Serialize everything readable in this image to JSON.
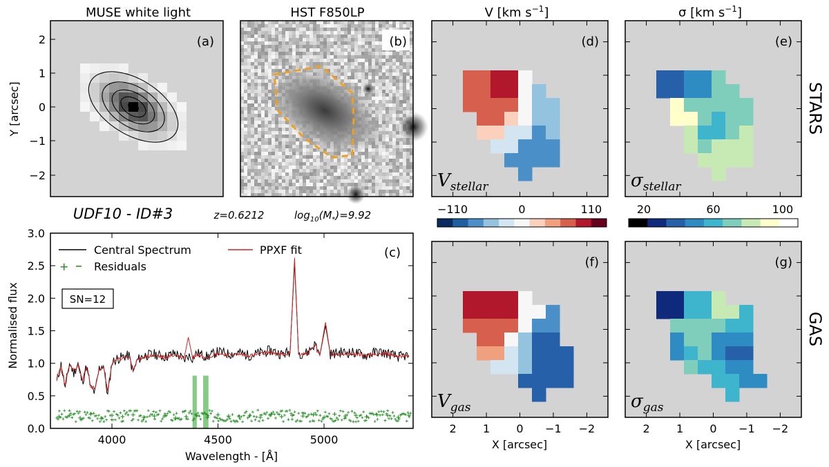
{
  "figure": {
    "panel_titles": {
      "a": "MUSE white light",
      "b": "HST F850LP",
      "d": "V [km s",
      "d_sup": "−1",
      "d_close": "]",
      "e": "σ [km s",
      "e_sup": "−1",
      "e_close": "]"
    },
    "panel_letters": {
      "a": "(a)",
      "b": "(b)",
      "c": "(c)",
      "d": "(d)",
      "e": "(e)",
      "f": "(f)",
      "g": "(g)"
    },
    "row_labels": {
      "stars": "STARS",
      "gas": "GAS"
    },
    "object": {
      "name": "UDF10 - ID#3",
      "redshift": "z=0.6212",
      "mass_prefix": "log",
      "mass_sub": "10",
      "mass_mid": "(M",
      "mass_sub2": "*",
      "mass_value": ")=9.92"
    },
    "map_labels": {
      "v_stellar": "V",
      "v_stellar_sub": "stellar",
      "s_stellar": "σ",
      "s_stellar_sub": "stellar",
      "v_gas": "V",
      "v_gas_sub": "gas",
      "s_gas": "σ",
      "s_gas_sub": "gas"
    },
    "axes": {
      "y_arcsec_label": "Y [arcsec]",
      "y_arcsec_ticks": [
        "2",
        "1",
        "0",
        "−1",
        "−2"
      ],
      "x_arcsec_label": "X [arcsec]",
      "x_arcsec_ticks": [
        "2",
        "1",
        "0",
        "−1",
        "−2"
      ]
    },
    "colorbars": {
      "velocity": {
        "ticks": [
          "−110",
          "0",
          "110"
        ],
        "colors": [
          "#0a2b60",
          "#1f5fa0",
          "#4a8fc8",
          "#93c3de",
          "#d4e5f2",
          "#f7f7f7",
          "#fbd0bc",
          "#f0a07f",
          "#d6604d",
          "#b2182b",
          "#67001f"
        ]
      },
      "dispersion": {
        "ticks": [
          "20",
          "60",
          "100"
        ],
        "colors": [
          "#000000",
          "#0f2a7a",
          "#2560a8",
          "#2e8cc2",
          "#3eb5cc",
          "#7fcdbb",
          "#c7e9b4",
          "#ffffcc",
          "#ffffff"
        ]
      }
    },
    "map_colors": {
      "background": "#d3d3d3",
      "v_stellar_cells": [
        {
          "c": "#d6604d"
        },
        {
          "c": "#b2182b"
        },
        {
          "c": "#f7f7f7"
        },
        {
          "c": "#93c3de"
        },
        {
          "c": "#4a8fc8"
        },
        {
          "c": "#fbd0bc"
        },
        {
          "c": "#d4e5f2"
        }
      ],
      "s_stellar_cells": [
        {
          "c": "#2560a8"
        },
        {
          "c": "#2e8cc2"
        },
        {
          "c": "#7fcdbb"
        },
        {
          "c": "#ffffcc"
        },
        {
          "c": "#c7e9b4"
        },
        {
          "c": "#3eb5cc"
        }
      ],
      "v_gas_cells": [
        {
          "c": "#b2182b"
        },
        {
          "c": "#d6604d"
        },
        {
          "c": "#f0a07f"
        },
        {
          "c": "#f7f7f7"
        },
        {
          "c": "#4a8fc8"
        },
        {
          "c": "#2560a8"
        },
        {
          "c": "#d4e5f2"
        },
        {
          "c": "#93c3de"
        }
      ],
      "s_gas_cells": [
        {
          "c": "#0f2a7a"
        },
        {
          "c": "#3eb5cc"
        },
        {
          "c": "#c7e9b4"
        },
        {
          "c": "#7fcdbb"
        },
        {
          "c": "#2e8cc2"
        },
        {
          "c": "#2560a8"
        }
      ]
    },
    "spectrum_text": {
      "legend_central": "Central Spectrum",
      "legend_fit": "PPXF fit",
      "legend_resid": "Residuals",
      "sn_box": "SN=12"
    }
  },
  "chart_data": {
    "type": "line",
    "title": "",
    "xlabel": "Wavelength - [Å]",
    "ylabel": "Normalised flux",
    "xlim": [
      3710,
      5420
    ],
    "ylim": [
      0.0,
      3.0
    ],
    "xticks": [
      4000,
      4500,
      5000
    ],
    "xtick_labels": [
      "4000",
      "4500",
      "5000"
    ],
    "yticks": [
      0.0,
      0.5,
      1.0,
      1.5,
      2.0,
      2.5,
      3.0
    ],
    "ytick_labels": [
      "0.0",
      "0.5",
      "1.0",
      "1.5",
      "2.0",
      "2.5",
      "3.0"
    ],
    "series": [
      {
        "name": "Central Spectrum",
        "color": "#000000",
        "x": [
          3740,
          3760,
          3780,
          3800,
          3820,
          3840,
          3860,
          3880,
          3900,
          3920,
          3940,
          3960,
          3980,
          4000,
          4020,
          4050,
          4080,
          4100,
          4120,
          4150,
          4200,
          4250,
          4300,
          4340,
          4360,
          4380,
          4400,
          4450,
          4500,
          4550,
          4600,
          4650,
          4700,
          4750,
          4800,
          4840,
          4861,
          4880,
          4920,
          4959,
          4980,
          5007,
          5030,
          5080,
          5150,
          5200,
          5250,
          5300,
          5350,
          5400
        ],
        "y": [
          0.72,
          0.98,
          0.62,
          1.0,
          0.85,
          1.0,
          0.7,
          0.96,
          0.62,
          0.55,
          0.92,
          0.98,
          0.5,
          1.02,
          1.06,
          1.1,
          1.12,
          0.86,
          1.05,
          1.12,
          1.14,
          1.1,
          1.16,
          1.05,
          1.12,
          1.08,
          1.16,
          1.1,
          1.18,
          1.14,
          1.16,
          1.12,
          1.16,
          1.2,
          1.14,
          1.18,
          2.55,
          1.15,
          1.16,
          1.3,
          1.12,
          1.58,
          1.14,
          1.17,
          1.16,
          1.12,
          1.18,
          1.15,
          1.1,
          1.12
        ]
      },
      {
        "name": "PPXF fit",
        "color": "#d62020",
        "x": [
          3740,
          3760,
          3780,
          3800,
          3820,
          3840,
          3860,
          3880,
          3900,
          3920,
          3940,
          3960,
          3980,
          4000,
          4020,
          4050,
          4080,
          4100,
          4120,
          4150,
          4200,
          4250,
          4300,
          4340,
          4360,
          4380,
          4400,
          4450,
          4500,
          4550,
          4600,
          4650,
          4700,
          4750,
          4800,
          4840,
          4861,
          4880,
          4920,
          4959,
          4980,
          5007,
          5030,
          5080,
          5150,
          5200,
          5250,
          5300,
          5350,
          5400
        ],
        "y": [
          0.75,
          0.96,
          0.66,
          0.98,
          0.87,
          0.97,
          0.74,
          0.94,
          0.66,
          0.6,
          0.9,
          0.95,
          0.55,
          1.0,
          1.05,
          1.08,
          1.1,
          0.9,
          1.04,
          1.1,
          1.12,
          1.09,
          1.13,
          1.07,
          1.4,
          1.09,
          1.13,
          1.1,
          1.15,
          1.13,
          1.14,
          1.12,
          1.14,
          1.17,
          1.13,
          1.15,
          2.62,
          1.14,
          1.15,
          1.28,
          1.12,
          1.63,
          1.13,
          1.15,
          1.14,
          1.12,
          1.15,
          1.14,
          1.11,
          1.12
        ]
      },
      {
        "name": "Residuals",
        "color": "#1a8a1a",
        "x": [
          3750,
          3800,
          3850,
          3900,
          3950,
          4000,
          4050,
          4100,
          4150,
          4200,
          4250,
          4300,
          4350,
          4400,
          4450,
          4500,
          4550,
          4600,
          4650,
          4700,
          4750,
          4800,
          4850,
          4900,
          4950,
          5000,
          5050,
          5100,
          5150,
          5200,
          5250,
          5300,
          5350,
          5400
        ],
        "y": [
          0.18,
          0.2,
          0.16,
          0.22,
          0.15,
          0.2,
          0.18,
          0.21,
          0.17,
          0.19,
          0.2,
          0.16,
          0.18,
          0.2,
          0.17,
          0.21,
          0.19,
          0.18,
          0.2,
          0.17,
          0.22,
          0.18,
          0.2,
          0.19,
          0.21,
          0.17,
          0.22,
          0.19,
          0.2,
          0.18,
          0.21,
          0.2,
          0.17,
          0.2
        ]
      }
    ],
    "masked_regions": [
      [
        4380,
        4400
      ],
      [
        4430,
        4455
      ]
    ]
  }
}
